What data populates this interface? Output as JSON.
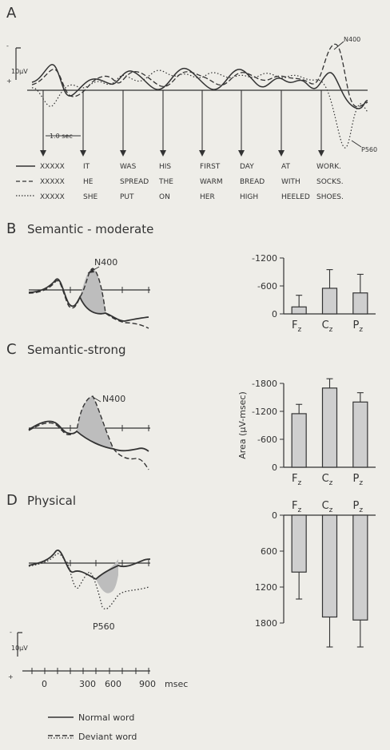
{
  "panel_a": {
    "letter": "A",
    "scale_label": "10μV",
    "interval_label": "1.0 sec",
    "n400_label": "N400",
    "p560_label": "P560",
    "sentences": [
      {
        "style": "solid",
        "words": [
          "XXXXX",
          "IT",
          "WAS",
          "HIS",
          "FIRST",
          "DAY",
          "AT",
          "WORK."
        ]
      },
      {
        "style": "dashed",
        "words": [
          "XXXXX",
          "HE",
          "SPREAD",
          "THE",
          "WARM",
          "BREAD",
          "WITH",
          "SOCKS."
        ]
      },
      {
        "style": "dotted",
        "words": [
          "XXXXX",
          "SHE",
          "PUT",
          "ON",
          "HER",
          "HIGH",
          "HEELED",
          "SHOES."
        ]
      }
    ]
  },
  "panels": [
    {
      "letter": "B",
      "title": "Semantic - moderate",
      "component_label": "N400"
    },
    {
      "letter": "C",
      "title": "Semantic-strong",
      "component_label": "N400"
    },
    {
      "letter": "D",
      "title": "Physical",
      "component_label": "P560"
    }
  ],
  "time_axis": {
    "ticks": [
      "0",
      "300",
      "600",
      "900"
    ],
    "unit": "msec",
    "scale_label": "10μV"
  },
  "legend": [
    {
      "label": "Normal word",
      "style": "solid"
    },
    {
      "label": "Deviant word",
      "style": "dashed"
    }
  ],
  "chart_data": [
    {
      "type": "bar",
      "panel": "B",
      "categories": [
        "Fz",
        "Cz",
        "Pz"
      ],
      "values": [
        -150,
        -550,
        -450
      ],
      "errors": [
        250,
        400,
        400
      ],
      "ylim": [
        0,
        -1200
      ],
      "ticks": [
        "-1200",
        "-600",
        "0"
      ],
      "ylabel": ""
    },
    {
      "type": "bar",
      "panel": "C",
      "categories": [
        "Fz",
        "Cz",
        "Pz"
      ],
      "values": [
        -1150,
        -1700,
        -1400
      ],
      "errors": [
        200,
        200,
        200
      ],
      "ylim": [
        0,
        -1800
      ],
      "ticks": [
        "-1800",
        "-1200",
        "-600",
        "0"
      ],
      "ylabel": "Area (μV-msec)"
    },
    {
      "type": "bar",
      "panel": "D",
      "categories": [
        "Fz",
        "Cz",
        "Pz"
      ],
      "values": [
        950,
        1700,
        1750
      ],
      "errors": [
        450,
        500,
        450
      ],
      "ylim": [
        0,
        1800
      ],
      "ticks": [
        "0",
        "600",
        "1200",
        "1800"
      ],
      "ylabel": ""
    }
  ]
}
